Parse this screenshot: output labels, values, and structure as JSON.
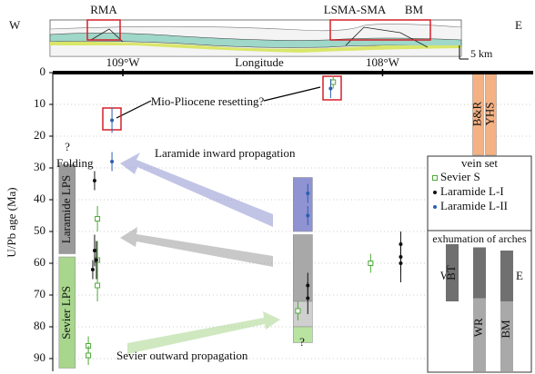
{
  "chart_data": {
    "type": "scatter",
    "x_label": "Longitude",
    "y_label": "U/Pb age (Ma)",
    "xlim": [
      -109.27,
      -107.42
    ],
    "ylim": [
      0,
      94
    ],
    "xticks": [
      {
        "value": -109,
        "label": "109°W"
      },
      {
        "value": -108,
        "label": "108°W"
      }
    ],
    "yticks": [
      0,
      10,
      20,
      30,
      40,
      50,
      60,
      70,
      80,
      90
    ],
    "grid": true,
    "legend_title": "vein set",
    "series": [
      {
        "name": "Sevier S",
        "color": "#4fa83a",
        "marker": "square",
        "x": [
          -109.133,
          -109.133,
          -109.098,
          -109.098,
          -109.098,
          -108.326,
          -108.046,
          -108.19
        ],
        "values": [
          86,
          89,
          46,
          59,
          67,
          75,
          60,
          3
        ],
        "errors": [
          3,
          3,
          4,
          6,
          5,
          3,
          3,
          2
        ]
      },
      {
        "name": "Laramide L-I",
        "color": "#111111",
        "marker": "dot",
        "x": [
          -109.109,
          -109.109,
          -109.102,
          -109.116,
          -108.288,
          -108.288,
          -107.93,
          -107.93,
          -107.93
        ],
        "values": [
          34,
          56,
          59,
          62,
          67,
          71,
          54,
          58,
          60
        ],
        "errors": [
          3,
          5,
          6,
          3,
          4,
          5,
          4,
          5,
          6
        ]
      },
      {
        "name": "Laramide L-II",
        "color": "#2a5fb0",
        "marker": "dot",
        "x": [
          -109.042,
          -109.042,
          -108.288,
          -108.288,
          -108.2
        ],
        "values": [
          15,
          28,
          38,
          45,
          5
        ],
        "errors": [
          4,
          3,
          3,
          3,
          3
        ]
      }
    ],
    "ranges": [
      {
        "label": "Sevier LPS",
        "color": "#a8d68c",
        "x": [
          -109.246,
          -109.183
        ],
        "y": [
          58,
          93
        ]
      },
      {
        "label": "Laramide LPS",
        "color": "#9a9a9a",
        "x": [
          -109.246,
          -109.183
        ],
        "y": [
          29,
          57
        ]
      },
      {
        "color": "#8f93d2",
        "x": [
          -108.344,
          -108.27
        ],
        "y": [
          33,
          50
        ]
      },
      {
        "color": "#a8a8a8",
        "x": [
          -108.344,
          -108.27
        ],
        "y": [
          51,
          72
        ]
      },
      {
        "color": "#cfcfcf",
        "x": [
          -108.344,
          -108.27
        ],
        "y": [
          72,
          80
        ]
      },
      {
        "color": "#b8e3a0",
        "x": [
          -108.344,
          -108.27
        ],
        "y": [
          80,
          85
        ]
      },
      {
        "label": "B&R",
        "color": "#f4b183",
        "x": [
          -107.653,
          -107.611
        ],
        "y": [
          0,
          26
        ]
      },
      {
        "label": "YHS",
        "color": "#f4b183",
        "x": [
          -107.604,
          -107.562
        ],
        "y": [
          0,
          26
        ]
      }
    ],
    "exhumation_title": "exhumation of arches",
    "exhumation_w": "W",
    "exhumation_e": "E",
    "exhumation": [
      {
        "label": "BT",
        "dark": [
          54,
          72
        ]
      },
      {
        "label": "WR",
        "dark": [
          55,
          71
        ],
        "light": [
          71,
          94
        ]
      },
      {
        "label": "BM",
        "dark": [
          56,
          72
        ],
        "light": [
          72,
          94
        ]
      }
    ],
    "annotations": {
      "resetting": "Mio-Pliocene resetting?",
      "inward": "Laramide inward propagation",
      "outward": "Sevier outward propagation",
      "folding": "Folding",
      "question_left": "?",
      "question_mid": "?"
    },
    "section": {
      "west": "W",
      "east": "E",
      "rma": "RMA",
      "lsma": "LSMA-SMA",
      "bm": "BM",
      "scale": "5 km"
    }
  }
}
